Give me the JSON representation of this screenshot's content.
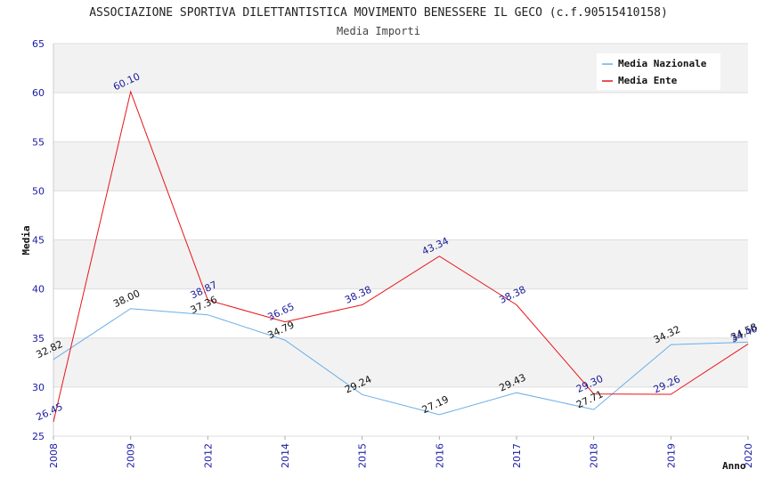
{
  "chart_data": {
    "type": "line",
    "title": "ASSOCIAZIONE SPORTIVA DILETTANTISTICA MOVIMENTO BENESSERE IL GECO (c.f.90515410158)",
    "subtitle": "Media Importi",
    "xlabel": "Anno",
    "ylabel": "Media",
    "ylim": [
      25,
      65
    ],
    "yticks": [
      "25",
      "30",
      "35",
      "40",
      "45",
      "50",
      "55",
      "60",
      "65"
    ],
    "categories": [
      "2008",
      "2009",
      "2012",
      "2014",
      "2015",
      "2016",
      "2017",
      "2018",
      "2019",
      "2020"
    ],
    "grid": true,
    "legend_position": "top-right",
    "series": [
      {
        "name": "Media Nazionale",
        "color": "#6aaee8",
        "label_color": "#111111",
        "values": [
          32.82,
          38.0,
          37.36,
          34.79,
          29.24,
          27.19,
          29.43,
          27.71,
          34.32,
          34.58
        ],
        "labels": [
          "32.82",
          "38.00",
          "37.36",
          "34.79",
          "29.24",
          "27.19",
          "29.43",
          "27.71",
          "34.32",
          "34.58"
        ]
      },
      {
        "name": "Media Ente",
        "color": "#e8141a",
        "label_color": "#1a1a9c",
        "values": [
          26.45,
          60.1,
          38.87,
          36.65,
          38.38,
          43.34,
          38.38,
          29.3,
          29.26,
          34.4
        ],
        "labels": [
          "26.45",
          "60.10",
          "38.87",
          "36.65",
          "38.38",
          "43.34",
          "38.38",
          "29.30",
          "29.26",
          "34.40"
        ]
      }
    ]
  }
}
